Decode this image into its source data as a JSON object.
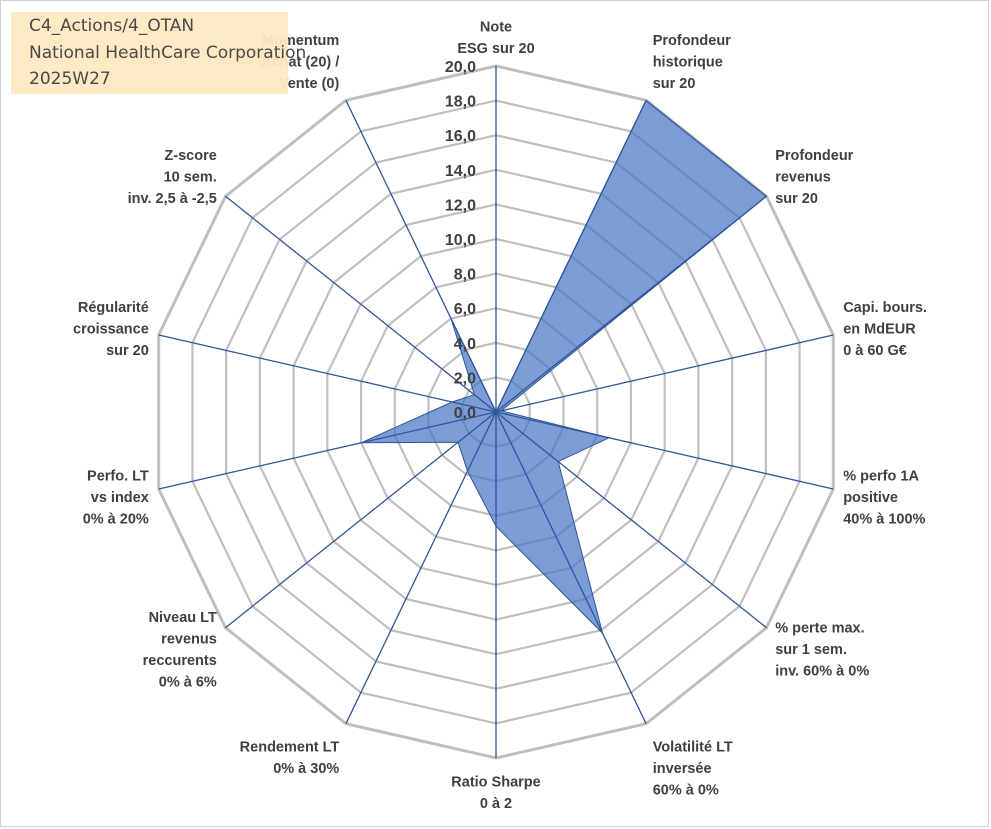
{
  "header": {
    "line1": "C4_Actions/4_OTAN",
    "line2": "National HealthCare Corporation",
    "line3": "2025W27"
  },
  "chart_data": {
    "type": "radar",
    "title": "",
    "rmax": 20,
    "ticks": [
      "0,0",
      "2,0",
      "4,0",
      "6,0",
      "8,0",
      "10,0",
      "12,0",
      "14,0",
      "16,0",
      "18,0",
      "20,0"
    ],
    "gridlines": true,
    "colors": {
      "fill": "#4472c4",
      "grid": "#bfbfbf",
      "axis": "#2f5597"
    },
    "axes": [
      {
        "label": [
          "Note",
          "ESG sur 20"
        ],
        "value": 0
      },
      {
        "label": [
          "Profondeur",
          "historique",
          "sur 20"
        ],
        "value": 20
      },
      {
        "label": [
          "Profondeur",
          "revenus",
          "sur 20"
        ],
        "value": 20
      },
      {
        "label": [
          "Capi. bours.",
          "en MdEUR",
          "0 à 60 G€"
        ],
        "value": 0.3
      },
      {
        "label": [
          "% perfo 1A",
          "positive",
          "40% à 100%"
        ],
        "value": 6.7
      },
      {
        "label": [
          "% perte max.",
          "sur 1 sem.",
          "inv. 60% à 0%"
        ],
        "value": 4.6
      },
      {
        "label": [
          "Volatilité LT",
          "inversée",
          "60% à 0%"
        ],
        "value": 14.2
      },
      {
        "label": [
          "Ratio Sharpe",
          "0 à 2"
        ],
        "value": 6.6
      },
      {
        "label": [
          "Rendement LT",
          "0% à 30%"
        ],
        "value": 3.8
      },
      {
        "label": [
          "Niveau LT",
          "revenus",
          "reccurents",
          "0% à 6%"
        ],
        "value": 2.8
      },
      {
        "label": [
          "Perfo. LT",
          "vs index",
          "0% à 20%"
        ],
        "value": 8.0
      },
      {
        "label": [
          "Régularité",
          "croissance",
          "sur 20"
        ],
        "value": 2.6
      },
      {
        "label": [
          "Z-score",
          "10 sem.",
          "inv. 2,5 à -2,5"
        ],
        "value": 1.6
      },
      {
        "label": [
          "Momentum",
          "Achat (20) /",
          "Vente (0)"
        ],
        "value": 6.0
      }
    ]
  }
}
